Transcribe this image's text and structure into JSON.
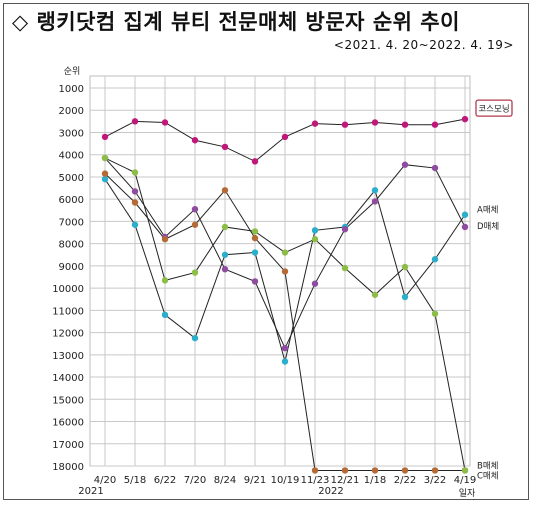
{
  "header": {
    "title": "◇ 랭키닷컴 집계 뷰티 전문매체 방문자 순위 추이",
    "subtitle": "<2021. 4. 20~2022. 4. 19>"
  },
  "chart_data": {
    "type": "line",
    "title": "랭키닷컴 집계 뷰티 전문매체 방문자 순위 추이",
    "ylabel": "순위",
    "xlabel": "일자",
    "ylim": [
      1000,
      18000
    ],
    "y_inverted": true,
    "y_ticks": [
      1000,
      2000,
      3000,
      4000,
      5000,
      6000,
      7000,
      8000,
      9000,
      10000,
      11000,
      12000,
      13000,
      14000,
      15000,
      16000,
      17000,
      18000
    ],
    "grid": true,
    "categories": [
      "4/20",
      "5/18",
      "6/22",
      "7/20",
      "8/24",
      "9/21",
      "10/19",
      "11/23",
      "12/21",
      "1/18",
      "2/22",
      "3/22",
      "4/19"
    ],
    "year_labels": [
      {
        "label": "2021",
        "at": "4/20"
      },
      {
        "label": "2022",
        "at": "12/21"
      }
    ],
    "series": [
      {
        "name": "코스모닝",
        "color": "#c0187a",
        "values": [
          3200,
          2500,
          2550,
          3350,
          3650,
          4300,
          3200,
          2600,
          2650,
          2550,
          2650,
          2650,
          2400
        ]
      },
      {
        "name": "A매체",
        "color": "#2aaecb",
        "values": [
          5100,
          7150,
          11200,
          12250,
          8500,
          8400,
          13300,
          7400,
          7250,
          5600,
          10400,
          8700,
          6700
        ]
      },
      {
        "name": "D매체",
        "color": "#8e4ca0",
        "values": [
          4150,
          5650,
          7700,
          6450,
          9150,
          9700,
          12700,
          9800,
          7350,
          6100,
          4450,
          4600,
          7250
        ]
      },
      {
        "name": "B매체",
        "color": "#b56a35",
        "values": [
          4850,
          6150,
          7800,
          7150,
          5600,
          7750,
          9250,
          18200,
          18200,
          18200,
          18200,
          18200,
          18200
        ]
      },
      {
        "name": "C매체",
        "color": "#8dbd48",
        "values": [
          4150,
          4800,
          9650,
          9300,
          7250,
          7450,
          8400,
          7800,
          9100,
          10300,
          9050,
          11150,
          18200
        ]
      }
    ],
    "series_labels": [
      {
        "series": "A매체",
        "text": "A매체"
      },
      {
        "series": "D매체",
        "text": "D매체"
      },
      {
        "series": "B매체",
        "text": "B매체"
      },
      {
        "series": "C매체",
        "text": "C매체"
      }
    ],
    "legend_box": {
      "series": "코스모닝",
      "text": "코스모닝"
    }
  }
}
